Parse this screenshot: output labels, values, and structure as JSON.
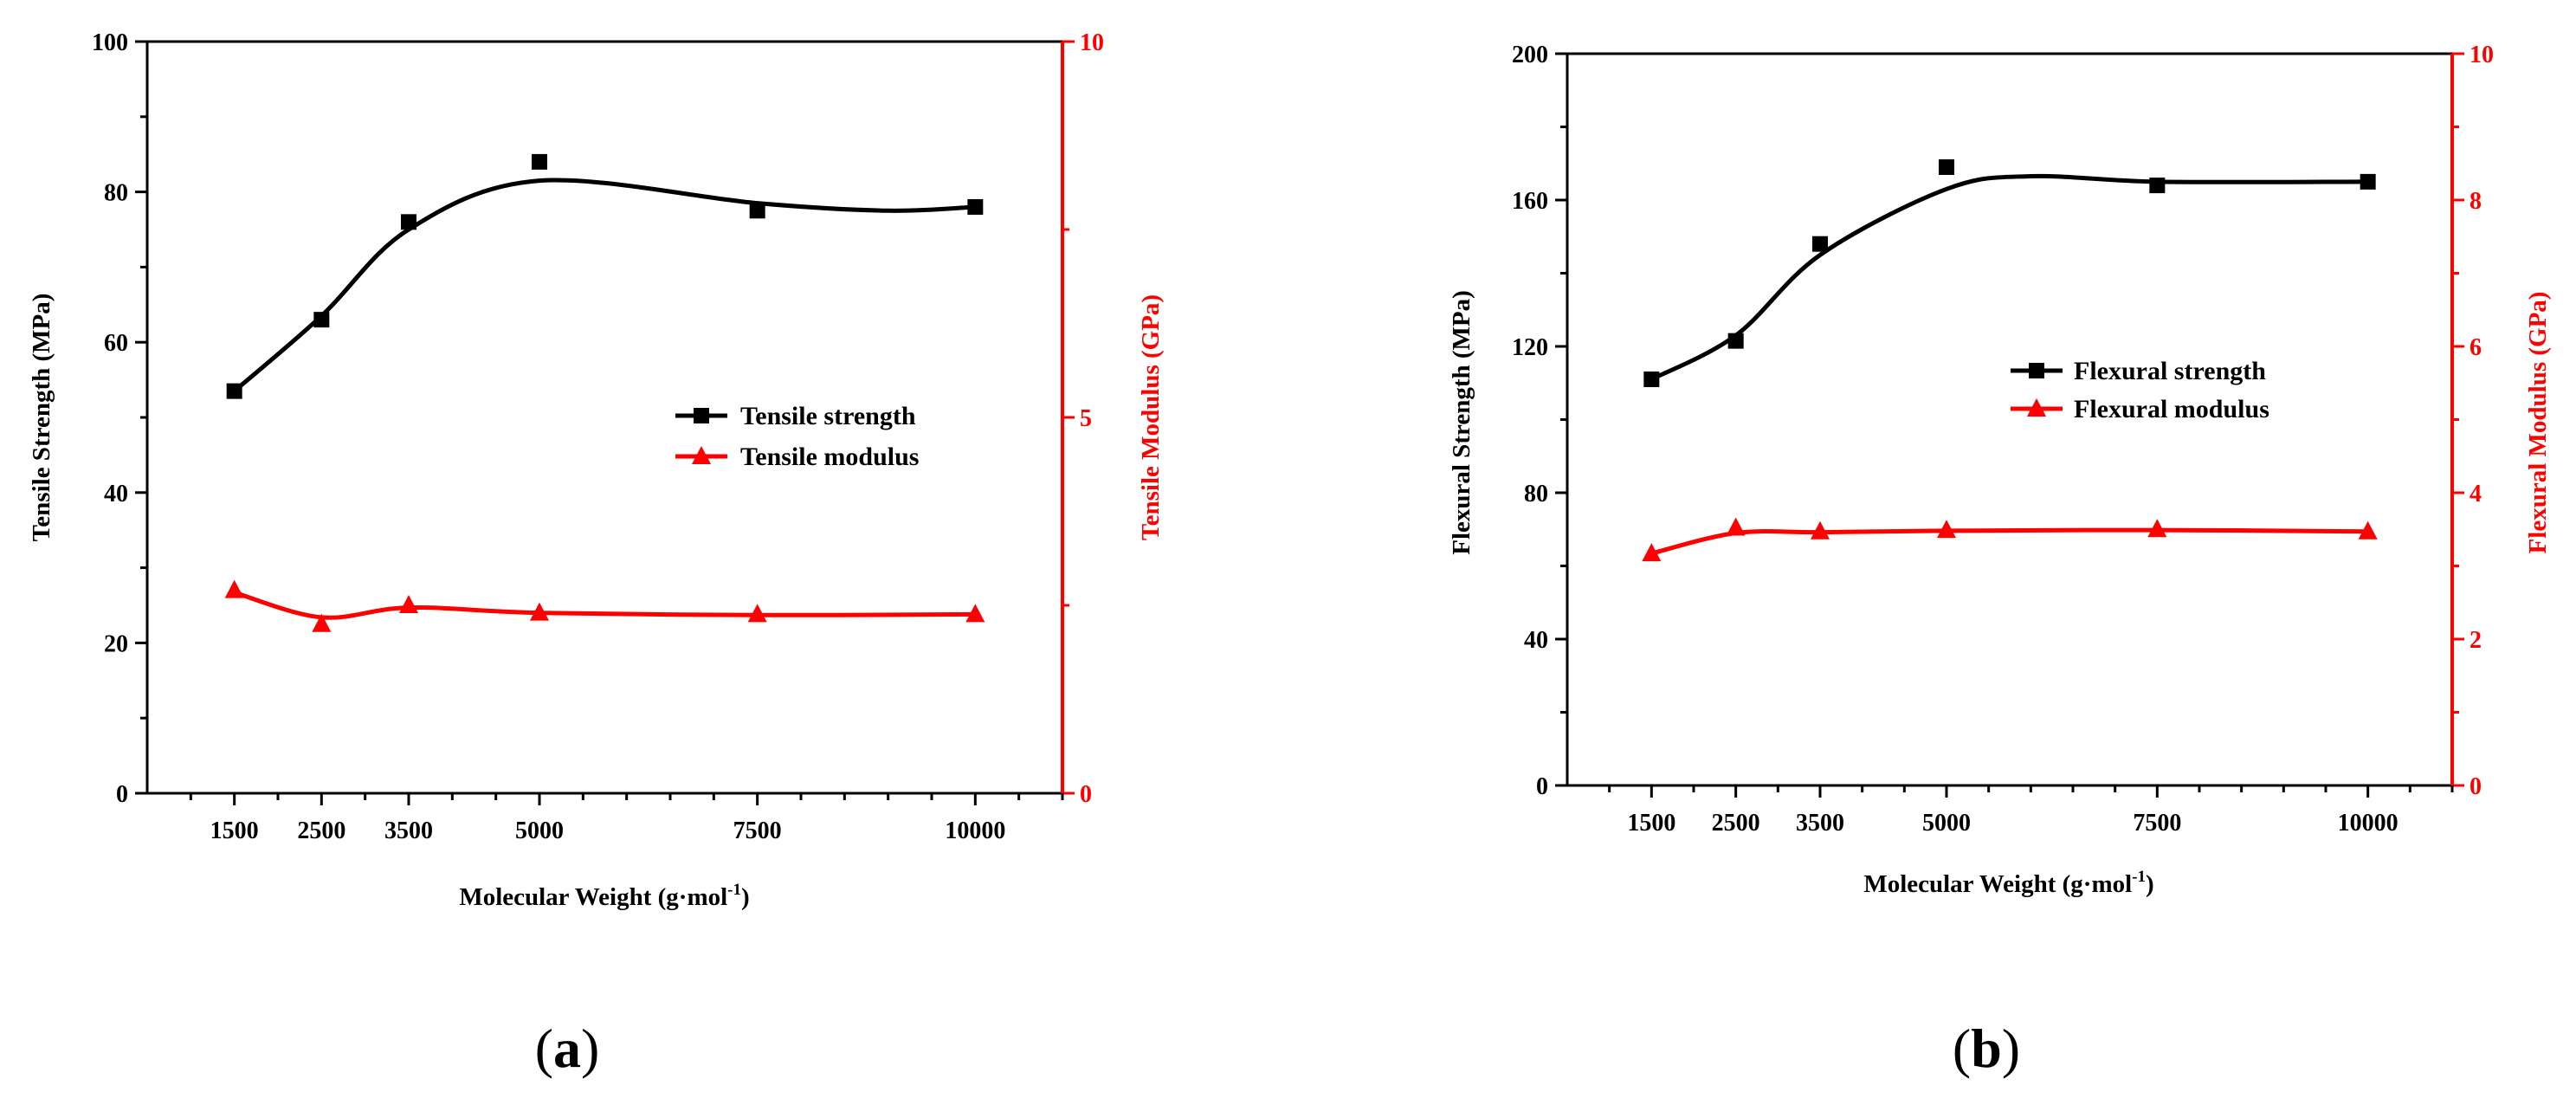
{
  "chart_data": [
    {
      "type": "line",
      "panel_label": "(a)",
      "panel_letter": "a",
      "xlabel": "Molecular Weight (g·mol",
      "xlabel_sup": "-1",
      "xlabel_close": ")",
      "ylabel": "Tensile Strength (MPa)",
      "y2label": "Tensile Modulus (GPa)",
      "xlim": [
        500,
        11000
      ],
      "ylim": [
        0,
        100
      ],
      "y2lim": [
        0,
        10
      ],
      "y_ticks": [
        0,
        20,
        40,
        60,
        80,
        100
      ],
      "y2_ticks": [
        0,
        5,
        10
      ],
      "x": [
        1500,
        2500,
        3500,
        5000,
        7500,
        10000
      ],
      "x_tick_labels": [
        "1500",
        "2500",
        "3500",
        "5000",
        "7500",
        "10000"
      ],
      "legend_position": "center-right",
      "series": [
        {
          "name": "Tensile strength",
          "axis": "left",
          "marker": "square",
          "color": "#000000",
          "values": [
            53.5,
            63,
            76,
            84,
            77.5,
            78
          ],
          "fit": [
            [
              1500,
              53.5
            ],
            [
              2500,
              63.5
            ],
            [
              3500,
              75
            ],
            [
              5000,
              81.5
            ],
            [
              7500,
              78.5
            ],
            [
              9000,
              77.5
            ],
            [
              10000,
              78
            ]
          ]
        },
        {
          "name": "Tensile modulus",
          "axis": "right",
          "marker": "triangle",
          "color": "#ff0000",
          "values": [
            2.7,
            2.25,
            2.5,
            2.4,
            2.38,
            2.38
          ],
          "fit": [
            [
              1500,
              2.67
            ],
            [
              2500,
              2.34
            ],
            [
              3500,
              2.47
            ],
            [
              5000,
              2.4
            ],
            [
              7500,
              2.37
            ],
            [
              10000,
              2.38
            ]
          ]
        }
      ]
    },
    {
      "type": "line",
      "panel_label": "(b)",
      "panel_letter": "b",
      "xlabel": "Molecular Weight (g·mol",
      "xlabel_sup": "-1",
      "xlabel_close": ")",
      "ylabel": "Flexural Strength (MPa)",
      "y2label": "Flexural Modulus (GPa)",
      "xlim": [
        500,
        11000
      ],
      "ylim": [
        0,
        200
      ],
      "y2lim": [
        0,
        10
      ],
      "y_ticks": [
        0,
        40,
        80,
        120,
        160,
        200
      ],
      "y2_ticks": [
        0,
        2,
        4,
        6,
        8,
        10
      ],
      "x": [
        1500,
        2500,
        3500,
        5000,
        7500,
        10000
      ],
      "x_tick_labels": [
        "1500",
        "2500",
        "3500",
        "5000",
        "7500",
        "10000"
      ],
      "legend_position": "center-right",
      "series": [
        {
          "name": "Flexural strength",
          "axis": "left",
          "marker": "square",
          "color": "#000000",
          "values": [
            111,
            121.5,
            148,
            169,
            164,
            165
          ],
          "fit": [
            [
              1500,
              111
            ],
            [
              2500,
              123
            ],
            [
              3500,
              145
            ],
            [
              5000,
              163
            ],
            [
              6000,
              166.5
            ],
            [
              7500,
              165
            ],
            [
              10000,
              165
            ]
          ]
        },
        {
          "name": "Flexural modulus",
          "axis": "right",
          "marker": "triangle",
          "color": "#ff0000",
          "values": [
            3.17,
            3.52,
            3.47,
            3.49,
            3.5,
            3.47
          ],
          "fit": [
            [
              1500,
              3.17
            ],
            [
              2500,
              3.45
            ],
            [
              3500,
              3.46
            ],
            [
              5000,
              3.48
            ],
            [
              7500,
              3.49
            ],
            [
              10000,
              3.47
            ]
          ]
        }
      ]
    }
  ]
}
